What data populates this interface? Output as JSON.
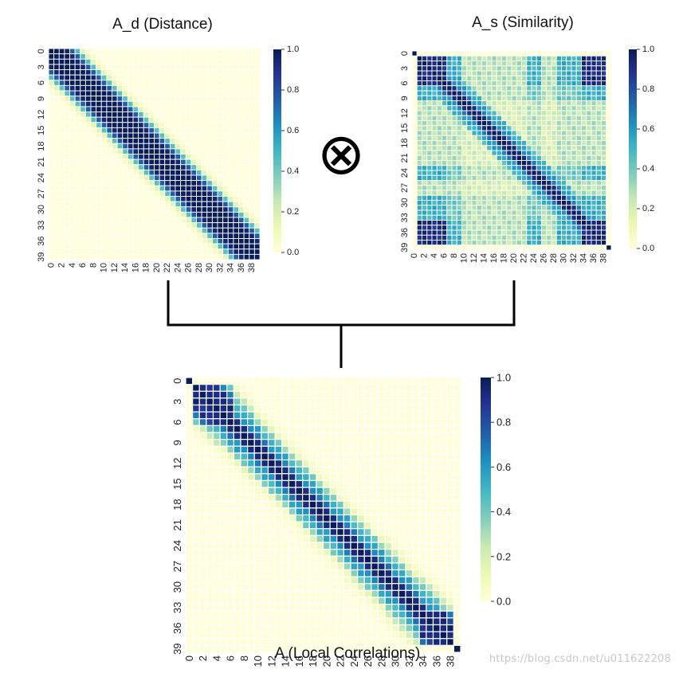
{
  "chart_data": [
    {
      "type": "heatmap",
      "title": "A_d (Distance)",
      "size": 40,
      "x_ticks": [
        0,
        2,
        4,
        6,
        8,
        10,
        12,
        14,
        16,
        18,
        20,
        22,
        24,
        26,
        28,
        30,
        32,
        34,
        36,
        38
      ],
      "y_ticks": [
        0,
        3,
        6,
        9,
        12,
        15,
        18,
        21,
        24,
        27,
        30,
        33,
        36,
        39
      ],
      "colorbar": {
        "min": 0.0,
        "max": 1.0,
        "ticks": [
          "0.0",
          "0.2",
          "0.4",
          "0.6",
          "0.8",
          "1.0"
        ]
      },
      "colormap": "YlGnBu",
      "pattern": {
        "description": "band matrix, value = f(|i-j|)",
        "band_values_by_offset": [
          1.0,
          1.0,
          1.0,
          0.95,
          0.75,
          0.45,
          0.15,
          0.05,
          0.0
        ]
      }
    },
    {
      "type": "heatmap",
      "title": "A_s (Similarity)",
      "size": 40,
      "x_ticks": [
        0,
        2,
        4,
        6,
        8,
        10,
        12,
        14,
        16,
        18,
        20,
        22,
        24,
        26,
        28,
        30,
        32,
        34,
        36,
        38
      ],
      "y_ticks": [
        0,
        3,
        6,
        9,
        12,
        15,
        18,
        21,
        24,
        27,
        30,
        33,
        36,
        39
      ],
      "colorbar": {
        "min": 0.0,
        "max": 1.0,
        "ticks": [
          "0.0",
          "0.2",
          "0.4",
          "0.6",
          "0.8",
          "1.0"
        ]
      },
      "colormap": "YlGnBu",
      "pattern": {
        "description": "block similarity; index 0 and 39 isolated; indices 1-6 and 34-38 strongly correlated; strong diagonal",
        "isolated_indices": [
          0,
          39
        ],
        "strong_group": [
          1,
          2,
          3,
          4,
          5,
          6,
          34,
          35,
          36,
          37,
          38
        ]
      }
    },
    {
      "type": "heatmap",
      "title": "A (Local Correlations)",
      "size": 40,
      "x_ticks": [
        0,
        2,
        4,
        6,
        8,
        10,
        12,
        14,
        16,
        18,
        20,
        22,
        24,
        26,
        28,
        30,
        32,
        34,
        36,
        38
      ],
      "y_ticks": [
        0,
        3,
        6,
        9,
        12,
        15,
        18,
        21,
        24,
        27,
        30,
        33,
        36,
        39
      ],
      "colorbar": {
        "min": 0.0,
        "max": 1.0,
        "ticks": [
          "0.0",
          "0.2",
          "0.4",
          "0.6",
          "0.8",
          "1.0"
        ]
      },
      "colormap": "YlGnBu",
      "pattern": {
        "description": "element-wise product of A_d and A_s"
      }
    }
  ],
  "operator_symbol": "⊗",
  "watermark": "https://blog.csdn.net/u011622208",
  "colors": {
    "cmap_stops": [
      "#ffffd9",
      "#edf8b1",
      "#c7e9b4",
      "#7fcdbb",
      "#41b6c4",
      "#1d91c0",
      "#225ea8",
      "#253494",
      "#081d58"
    ],
    "connector": "#000000",
    "grid": "#ffffff"
  }
}
